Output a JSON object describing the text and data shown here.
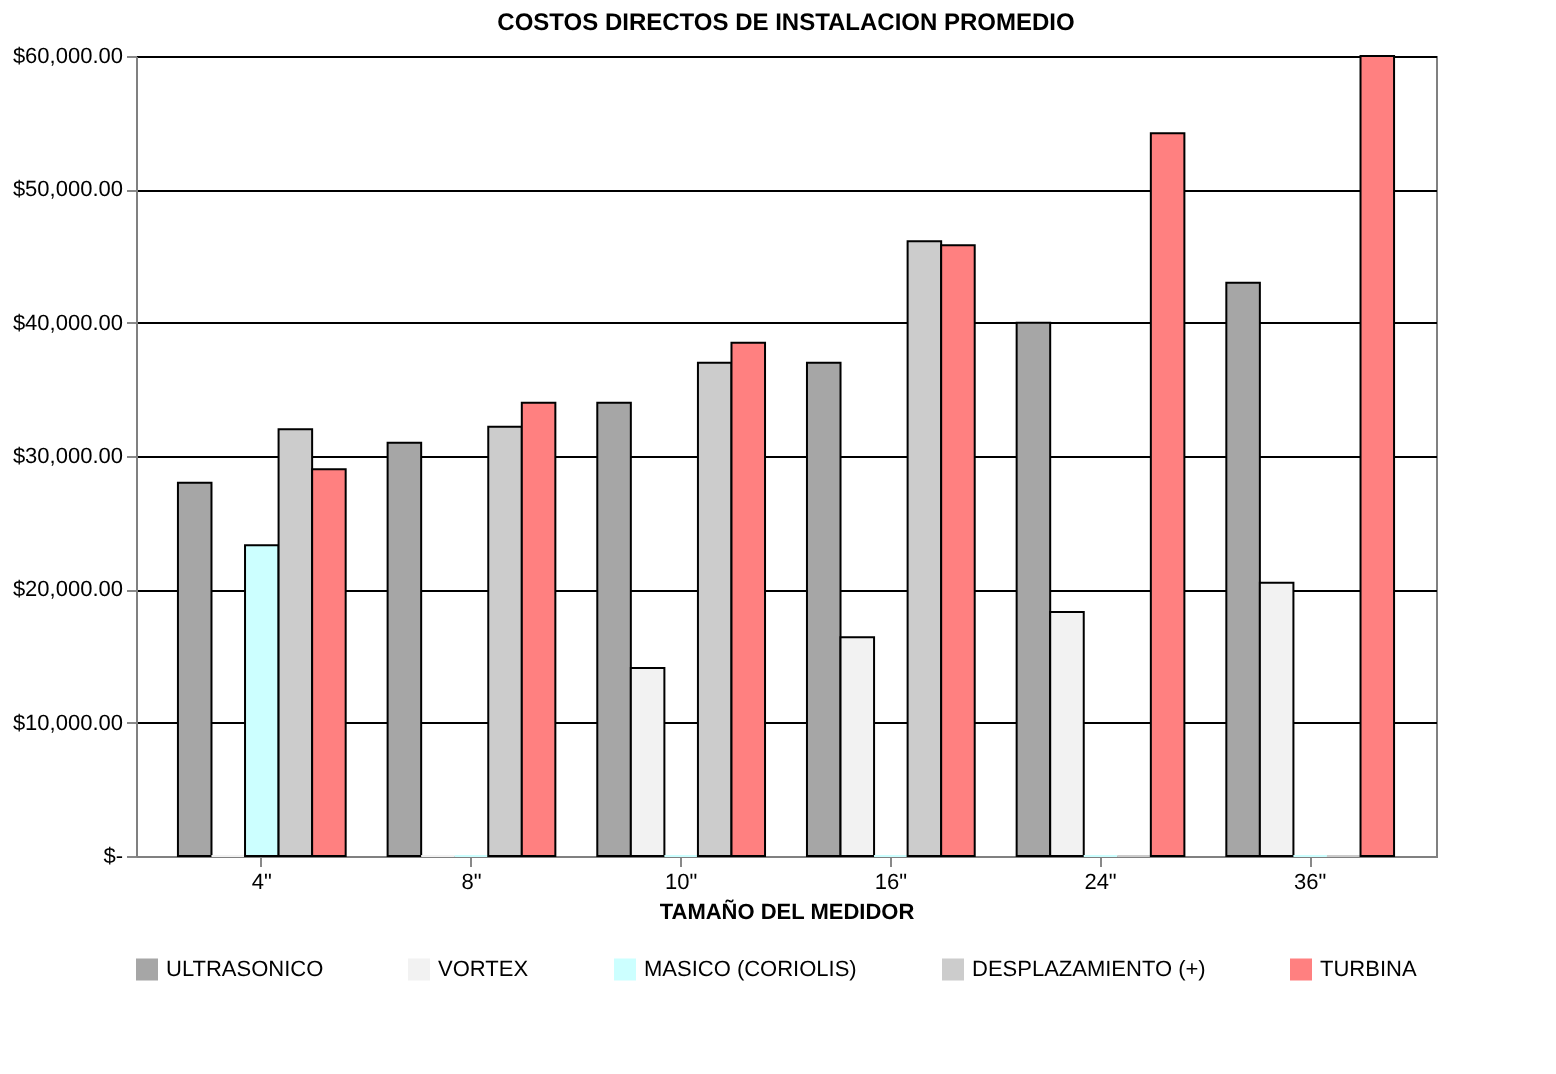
{
  "chart_data": {
    "type": "bar",
    "title": "COSTOS DIRECTOS DE INSTALACION PROMEDIO",
    "xlabel": "TAMAÑO DEL MEDIDOR",
    "categories": [
      "4\"",
      "8\"",
      "10\"",
      "16\"",
      "24\"",
      "36\""
    ],
    "series": [
      {
        "name": "ULTRASONICO",
        "color": "#a6a6a6",
        "values": [
          28000,
          31000,
          34000,
          37000,
          40000,
          43000
        ]
      },
      {
        "name": "VORTEX",
        "color": "#f2f2f2",
        "values": [
          0,
          0,
          14100,
          16400,
          18300,
          20500
        ]
      },
      {
        "name": "MASICO (CORIOLIS)",
        "color": "#ccffff",
        "values": [
          23300,
          0,
          0,
          0,
          0,
          0
        ]
      },
      {
        "name": "DESPLAZAMIENTO (+)",
        "color": "#cccccc",
        "values": [
          32000,
          32200,
          37000,
          46100,
          0,
          0
        ]
      },
      {
        "name": "TURBINA",
        "color": "#ff8080",
        "values": [
          29000,
          34000,
          38500,
          45800,
          54200,
          60000
        ]
      }
    ],
    "ylim": [
      0,
      60000
    ],
    "yticks": [
      {
        "value": 0,
        "label": "$-"
      },
      {
        "value": 10000,
        "label": "$10,000.00"
      },
      {
        "value": 20000,
        "label": "$20,000.00"
      },
      {
        "value": 30000,
        "label": "$30,000.00"
      },
      {
        "value": 40000,
        "label": "$40,000.00"
      },
      {
        "value": 50000,
        "label": "$50,000.00"
      },
      {
        "value": 60000,
        "label": "$60,000.00"
      }
    ],
    "grid": "y",
    "legend": "bottom"
  }
}
